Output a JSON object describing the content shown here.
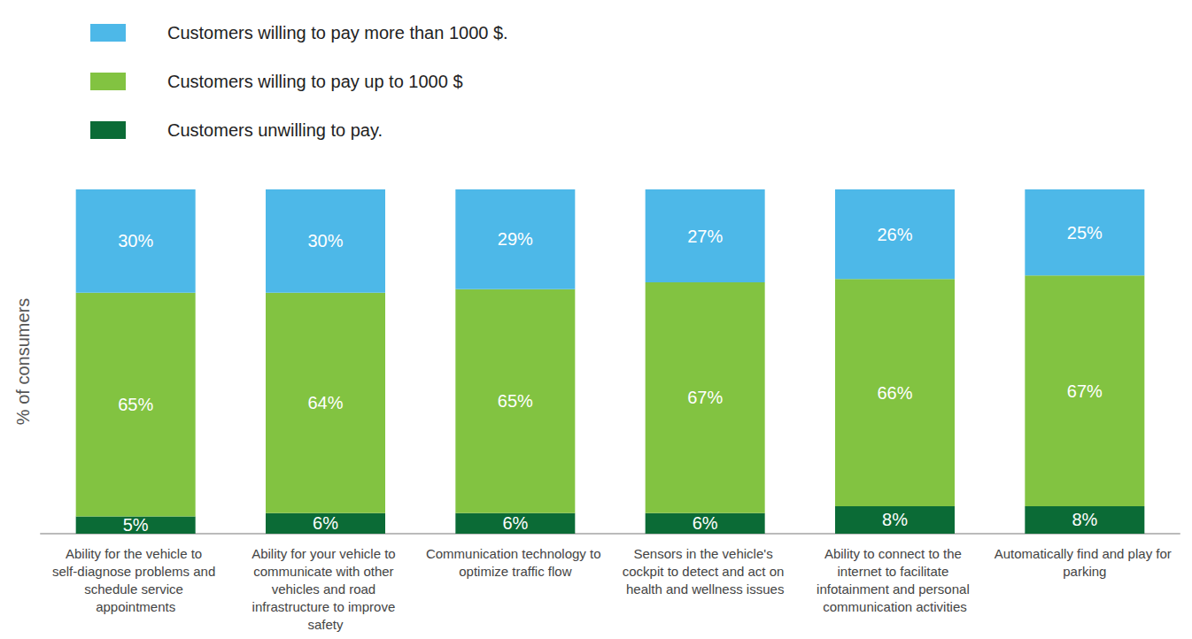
{
  "chart_data": {
    "type": "bar",
    "y_label": "% of consumers",
    "categories": [
      "Ability for the vehicle to self-diagnose problems and schedule service appointments",
      "Ability for your vehicle to communicate with other vehicles and road infrastructure to improve safety",
      "Communication technology to optimize traffic flow",
      "Sensors in the vehicle's cockpit to detect and act on health and wellness issues",
      "Ability to connect to the internet to facilitate infotainment and personal communication activities",
      "Automatically find and play for parking"
    ],
    "series": [
      {
        "name": "Customers willing to pay more than 1000 $.",
        "color": "#4db8e8",
        "values": [
          30,
          30,
          29,
          27,
          26,
          25
        ],
        "value_labels": [
          "30%",
          "30%",
          "29%",
          "27%",
          "26%",
          "25%"
        ]
      },
      {
        "name": "Customers willing to pay up to 1000 $",
        "color": "#82c341",
        "values": [
          65,
          64,
          65,
          67,
          66,
          67
        ],
        "value_labels": [
          "65%",
          "64%",
          "65%",
          "67%",
          "66%",
          "67%"
        ]
      },
      {
        "name": "Customers unwilling to pay.",
        "color": "#0b6b36",
        "values": [
          5,
          6,
          6,
          6,
          8,
          8
        ],
        "value_labels": [
          "5%",
          "6%",
          "6%",
          "6%",
          "8%",
          "8%"
        ]
      }
    ],
    "ylim": [
      0,
      100
    ],
    "stacked": true,
    "data_labels": true,
    "grid": false,
    "legend": "top-left",
    "tick_labels": "x"
  }
}
